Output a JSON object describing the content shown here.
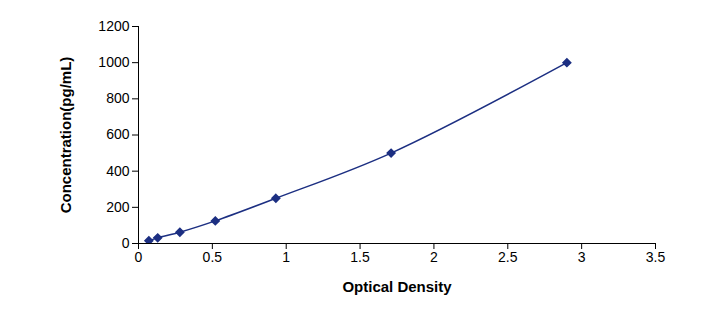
{
  "chart_data": {
    "type": "line",
    "x_label": "Optical Density",
    "y_label": "Concentration(pg/mL)",
    "x": [
      0.07,
      0.13,
      0.28,
      0.52,
      0.93,
      1.71,
      2.9
    ],
    "values": [
      15.6,
      31.25,
      62.5,
      125,
      250,
      500,
      1000
    ],
    "color": "#1c2f82",
    "marker": "diamond",
    "line_style": "solid",
    "grid": false,
    "xlim": [
      0,
      3.5
    ],
    "xticks": [
      0,
      0.5,
      1,
      1.5,
      2,
      2.5,
      3,
      3.5
    ],
    "ylim": [
      0,
      1200
    ],
    "yticks": [
      0,
      200,
      400,
      600,
      800,
      1000,
      1200
    ]
  }
}
